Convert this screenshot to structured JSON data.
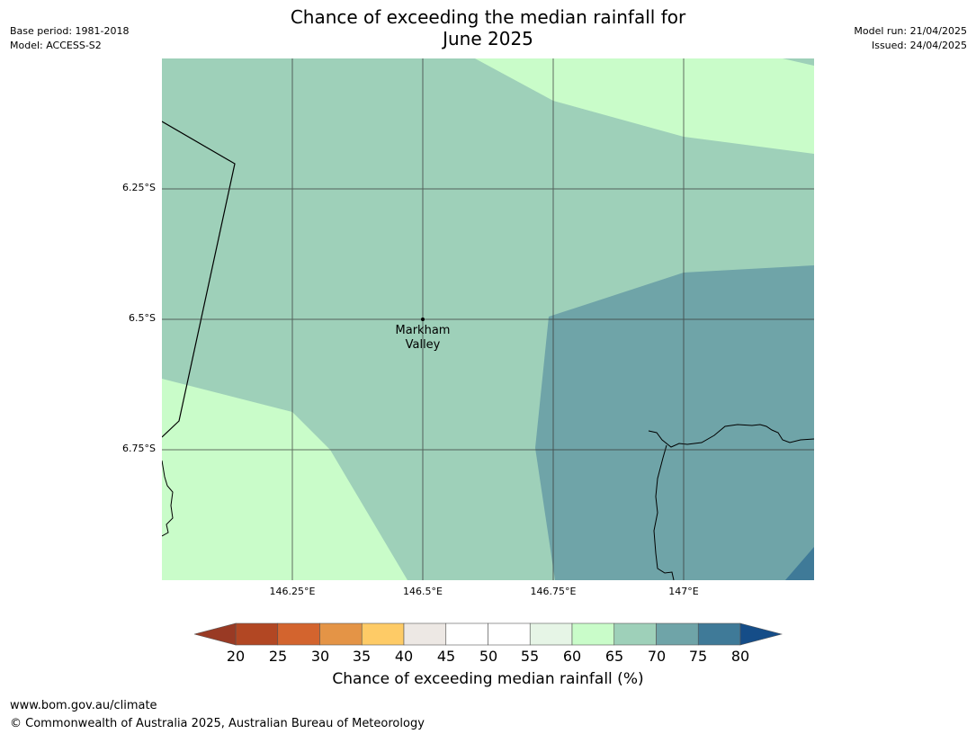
{
  "title_line1": "Chance of exceeding the median rainfall for",
  "title_line2": "June 2025",
  "meta_left": {
    "base_period": "Base period: 1981-2018",
    "model": "Model: ACCESS-S2"
  },
  "meta_right": {
    "model_run": "Model run: 21/04/2025",
    "issued": "Issued: 24/04/2025"
  },
  "map": {
    "lat_ticks": [
      "6.25°S",
      "6.5°S",
      "6.75°S"
    ],
    "lon_ticks": [
      "146.25°E",
      "146.5°E",
      "146.75°E",
      "147°E"
    ],
    "town": {
      "line1": "Markham",
      "line2": "Valley",
      "lon": 146.5,
      "lat": -6.5
    },
    "colors": {
      "c60_65": "#c9fcc9",
      "c65_70": "#9ed0b9",
      "c70_75": "#6fa4a8",
      "c75_80": "#3f7a98"
    }
  },
  "colorbar": {
    "ticks": [
      "20",
      "25",
      "30",
      "35",
      "40",
      "45",
      "50",
      "55",
      "60",
      "65",
      "70",
      "75",
      "80"
    ],
    "bins": [
      "#b24723",
      "#d3642e",
      "#e49446",
      "#fecb66",
      "#ede8e4",
      "#ffffff",
      "#ffffff",
      "#e6f5e6",
      "#c9fcc9",
      "#9ed0b9",
      "#6fa4a8",
      "#3f7a98"
    ],
    "under_color": "#993a24",
    "over_color": "#154d88",
    "label": "Chance of exceeding median rainfall (%)"
  },
  "footer": {
    "url": "www.bom.gov.au/climate",
    "copyright": "© Commonwealth of Australia 2025, Australian Bureau of Meteorology"
  }
}
